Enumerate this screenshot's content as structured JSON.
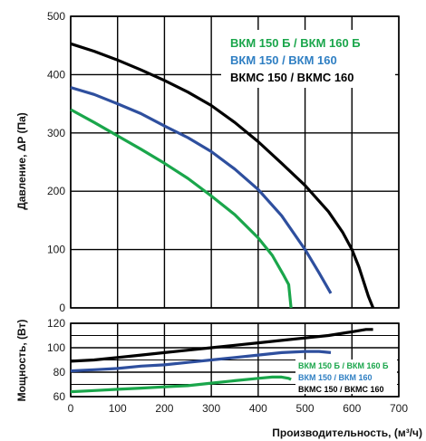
{
  "colors": {
    "green": "#1aa64b",
    "blue": "#2e4f9e",
    "blue_label": "#2f7fc3",
    "black": "#000000",
    "grid": "#000000"
  },
  "chart_data": [
    {
      "id": "pressure",
      "type": "line",
      "ylabel": "Давление, ΔP (Па)",
      "xlim": [
        0,
        700
      ],
      "ylim": [
        0,
        500
      ],
      "xticks": [
        0,
        100,
        200,
        300,
        400,
        500,
        600,
        700
      ],
      "yticks": [
        0,
        100,
        200,
        300,
        400,
        500
      ],
      "grid": true,
      "legend_position": "top-right",
      "series": [
        {
          "name": "ВКМ 150 Б / ВКМ 160 Б",
          "color_key": "green",
          "x": [
            0,
            50,
            100,
            150,
            200,
            250,
            300,
            350,
            400,
            430,
            455,
            465,
            470
          ],
          "y": [
            340,
            318,
            295,
            272,
            248,
            222,
            192,
            160,
            120,
            90,
            55,
            40,
            0
          ]
        },
        {
          "name": "ВКМ 150 / ВКМ 160",
          "color_key": "blue",
          "label_color_key": "blue_label",
          "x": [
            0,
            50,
            100,
            150,
            200,
            250,
            300,
            350,
            400,
            450,
            500,
            530,
            555
          ],
          "y": [
            378,
            366,
            350,
            333,
            312,
            292,
            268,
            238,
            203,
            158,
            100,
            60,
            25
          ]
        },
        {
          "name": "ВКМС 150 / ВКМС 160",
          "color_key": "black",
          "x": [
            0,
            50,
            100,
            150,
            200,
            250,
            300,
            350,
            400,
            450,
            500,
            550,
            580,
            600,
            615,
            625,
            635,
            645
          ],
          "y": [
            453,
            440,
            425,
            408,
            390,
            370,
            347,
            318,
            285,
            248,
            210,
            165,
            130,
            100,
            70,
            45,
            20,
            0
          ]
        }
      ]
    },
    {
      "id": "power",
      "type": "line",
      "xlabel": "Производительность, (м³/ч)",
      "ylabel": "Мощность, (Вт)",
      "xlim": [
        0,
        700
      ],
      "ylim": [
        60,
        120
      ],
      "xticks": [
        0,
        100,
        200,
        300,
        400,
        500,
        600,
        700
      ],
      "yticks": [
        60,
        80,
        100,
        120
      ],
      "grid": true,
      "legend_position": "right",
      "series": [
        {
          "name": "ВКМ 150 Б / ВКМ 160 Б",
          "color_key": "green",
          "x": [
            0,
            50,
            100,
            150,
            200,
            250,
            300,
            350,
            400,
            430,
            450,
            465,
            470
          ],
          "y": [
            64,
            65,
            66,
            67,
            68,
            69,
            71,
            73,
            75,
            76,
            76,
            75,
            74
          ]
        },
        {
          "name": "ВКМ 150 / ВКМ 160",
          "color_key": "blue",
          "label_color_key": "blue_label",
          "x": [
            0,
            50,
            100,
            150,
            200,
            250,
            300,
            350,
            400,
            450,
            500,
            530,
            555
          ],
          "y": [
            81,
            82,
            83,
            85,
            86,
            88,
            90,
            92,
            94,
            96,
            97,
            97,
            96
          ]
        },
        {
          "name": "ВКМС 150 / ВКМС 160",
          "color_key": "black",
          "x": [
            0,
            50,
            100,
            150,
            200,
            250,
            300,
            350,
            400,
            450,
            500,
            550,
            600,
            630,
            645
          ],
          "y": [
            89,
            90,
            92,
            94,
            96,
            98,
            100,
            102,
            104,
            106,
            108,
            110,
            113,
            115,
            115
          ]
        }
      ]
    }
  ]
}
